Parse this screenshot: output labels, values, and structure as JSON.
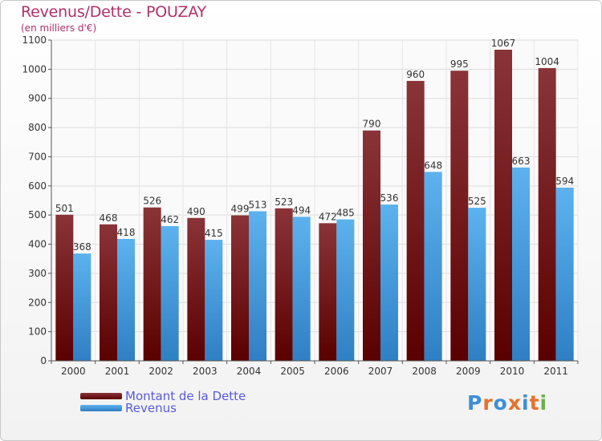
{
  "header": {
    "title": "Revenus/Dette - POUZAY",
    "subtitle": "(en milliers d'€)"
  },
  "legend": {
    "items": [
      {
        "label": "Montant de la Dette",
        "color": "#7a1518"
      },
      {
        "label": "Revenus",
        "color": "#4aa6e8"
      }
    ]
  },
  "logo": {
    "text": "Proxiti",
    "letter_colors": [
      "#3b8fd8",
      "#e8702a",
      "#3b8fd8",
      "#e8702a",
      "#3b8fd8",
      "#e8702a",
      "#6ab04c"
    ]
  },
  "chart_data": {
    "type": "bar",
    "categories": [
      "2000",
      "2001",
      "2002",
      "2003",
      "2004",
      "2005",
      "2006",
      "2007",
      "2008",
      "2009",
      "2010",
      "2011"
    ],
    "series": [
      {
        "name": "Montant de la Dette",
        "values": [
          501,
          468,
          526,
          490,
          499,
          523,
          472,
          790,
          960,
          995,
          1067,
          1004
        ],
        "color": "#7a1518"
      },
      {
        "name": "Revenus",
        "values": [
          368,
          418,
          462,
          415,
          513,
          494,
          485,
          536,
          648,
          525,
          663,
          594
        ],
        "color": "#4aa6e8"
      }
    ],
    "ylim": [
      0,
      1100
    ],
    "yticks": [
      0,
      100,
      200,
      300,
      400,
      500,
      600,
      700,
      800,
      900,
      1000,
      1100
    ],
    "grid": true,
    "legend_position": "bottom-left"
  }
}
